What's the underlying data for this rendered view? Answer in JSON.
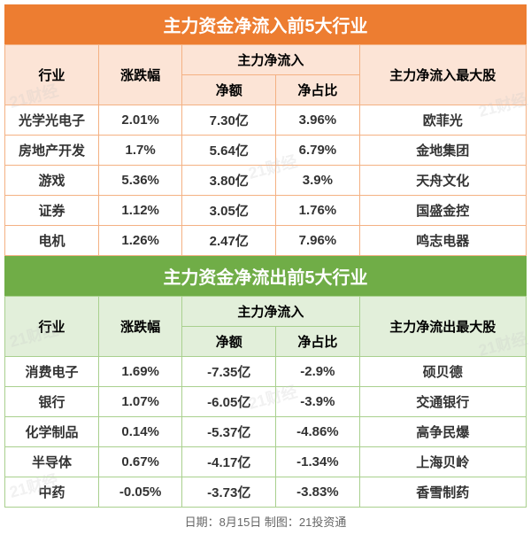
{
  "inflow": {
    "title": "主力资金净流入前5大行业",
    "header_bg": "#ed7d31",
    "th_bg": "#fce4d6",
    "border_color": "#f4b183",
    "columns": {
      "industry": "行业",
      "change": "涨跌幅",
      "netflow_group": "主力净流入",
      "net_amount": "净额",
      "net_ratio": "净占比",
      "top_stock": "主力净流入最大股"
    },
    "rows": [
      {
        "industry": "光学光电子",
        "change": "2.01%",
        "net_amount": "7.30亿",
        "net_ratio": "3.96%",
        "top_stock": "欧菲光"
      },
      {
        "industry": "房地产开发",
        "change": "1.7%",
        "net_amount": "5.64亿",
        "net_ratio": "6.79%",
        "top_stock": "金地集团"
      },
      {
        "industry": "游戏",
        "change": "5.36%",
        "net_amount": "3.80亿",
        "net_ratio": "3.9%",
        "top_stock": "天舟文化"
      },
      {
        "industry": "证券",
        "change": "1.12%",
        "net_amount": "3.05亿",
        "net_ratio": "1.76%",
        "top_stock": "国盛金控"
      },
      {
        "industry": "电机",
        "change": "1.26%",
        "net_amount": "2.47亿",
        "net_ratio": "7.96%",
        "top_stock": "鸣志电器"
      }
    ]
  },
  "outflow": {
    "title": "主力资金净流出前5大行业",
    "header_bg": "#70ad47",
    "th_bg": "#e2efda",
    "border_color": "#a9d08e",
    "columns": {
      "industry": "行业",
      "change": "涨跌幅",
      "netflow_group": "主力净流入",
      "net_amount": "净额",
      "net_ratio": "净占比",
      "top_stock": "主力净流出最大股"
    },
    "rows": [
      {
        "industry": "消费电子",
        "change": "1.69%",
        "net_amount": "-7.35亿",
        "net_ratio": "-2.9%",
        "top_stock": "硕贝德"
      },
      {
        "industry": "银行",
        "change": "1.07%",
        "net_amount": "-6.05亿",
        "net_ratio": "-3.9%",
        "top_stock": "交通银行"
      },
      {
        "industry": "化学制品",
        "change": "0.14%",
        "net_amount": "-5.37亿",
        "net_ratio": "-4.86%",
        "top_stock": "高争民爆"
      },
      {
        "industry": "半导体",
        "change": "0.67%",
        "net_amount": "-4.17亿",
        "net_ratio": "-1.34%",
        "top_stock": "上海贝岭"
      },
      {
        "industry": "中药",
        "change": "-0.05%",
        "net_amount": "-3.73亿",
        "net_ratio": "-3.83%",
        "top_stock": "香雪制药"
      }
    ]
  },
  "footer": "日期：8月15日 制图：21投资通",
  "watermark_text": "21财经"
}
